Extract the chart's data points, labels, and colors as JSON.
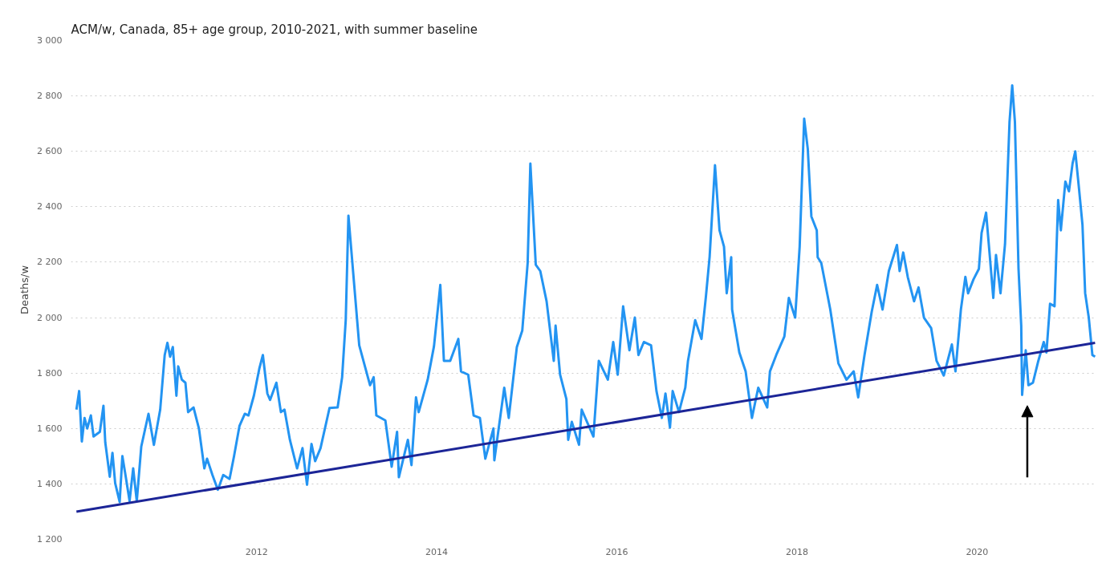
{
  "chart_data": {
    "type": "line",
    "title": "ACM/w, Canada, 85+ age group, 2010-2021, with summer baseline",
    "ylabel": "Deaths/w",
    "xlim": [
      2009.94,
      2021.32
    ],
    "ylim": [
      1200,
      3000
    ],
    "xticks": [
      2012,
      2014,
      2016,
      2018,
      2020
    ],
    "yticks": [
      {
        "value": 1200,
        "label": "1 200"
      },
      {
        "value": 1400,
        "label": "1 400"
      },
      {
        "value": 1600,
        "label": "1 600"
      },
      {
        "value": 1800,
        "label": "1 800"
      },
      {
        "value": 2000,
        "label": "2 000"
      },
      {
        "value": 2200,
        "label": "2 200"
      },
      {
        "value": 2400,
        "label": "2 400"
      },
      {
        "value": 2600,
        "label": "2 600"
      },
      {
        "value": 2800,
        "label": "2 800"
      },
      {
        "value": 3000,
        "label": "3 000"
      }
    ],
    "grid": "y",
    "line_style": "solid",
    "marker": "none",
    "series": [
      {
        "color": "#2394f2",
        "x": [
          2010.0,
          2010.03,
          2010.06,
          2010.09,
          2010.12,
          2010.16,
          2010.19,
          2010.26,
          2010.3,
          2010.32,
          2010.37,
          2010.4,
          2010.43,
          2010.48,
          2010.51,
          2010.54,
          2010.59,
          2010.63,
          2010.67,
          2010.72,
          2010.8,
          2010.86,
          2010.93,
          2010.98,
          2011.01,
          2011.04,
          2011.07,
          2011.11,
          2011.13,
          2011.17,
          2011.21,
          2011.24,
          2011.3,
          2011.36,
          2011.42,
          2011.45,
          2011.51,
          2011.57,
          2011.63,
          2011.7,
          2011.75,
          2011.81,
          2011.87,
          2011.91,
          2011.97,
          2012.03,
          2012.07,
          2012.12,
          2012.15,
          2012.22,
          2012.27,
          2012.31,
          2012.37,
          2012.45,
          2012.51,
          2012.56,
          2012.61,
          2012.65,
          2012.71,
          2012.81,
          2012.9,
          2012.95,
          2012.99,
          2013.02,
          2013.14,
          2013.26,
          2013.3,
          2013.33,
          2013.43,
          2013.5,
          2013.56,
          2013.58,
          2013.68,
          2013.72,
          2013.77,
          2013.8,
          2013.9,
          2013.97,
          2014.04,
          2014.08,
          2014.15,
          2014.24,
          2014.27,
          2014.35,
          2014.41,
          2014.48,
          2014.54,
          2014.63,
          2014.64,
          2014.75,
          2014.8,
          2014.89,
          2014.95,
          2015.01,
          2015.04,
          2015.1,
          2015.15,
          2015.22,
          2015.3,
          2015.32,
          2015.37,
          2015.44,
          2015.46,
          2015.5,
          2015.58,
          2015.61,
          2015.74,
          2015.8,
          2015.9,
          2015.96,
          2016.01,
          2016.07,
          2016.14,
          2016.2,
          2016.24,
          2016.3,
          2016.38,
          2016.44,
          2016.5,
          2016.54,
          2016.59,
          2016.62,
          2016.69,
          2016.76,
          2016.79,
          2016.87,
          2016.94,
          2016.99,
          2017.03,
          2017.09,
          2017.14,
          2017.19,
          2017.22,
          2017.27,
          2017.28,
          2017.36,
          2017.43,
          2017.5,
          2017.57,
          2017.67,
          2017.7,
          2017.77,
          2017.86,
          2017.91,
          2017.98,
          2018.03,
          2018.08,
          2018.12,
          2018.16,
          2018.22,
          2018.23,
          2018.27,
          2018.37,
          2018.46,
          2018.55,
          2018.63,
          2018.68,
          2018.75,
          2018.83,
          2018.89,
          2018.95,
          2019.02,
          2019.11,
          2019.14,
          2019.18,
          2019.23,
          2019.3,
          2019.35,
          2019.41,
          2019.49,
          2019.55,
          2019.63,
          2019.72,
          2019.76,
          2019.82,
          2019.87,
          2019.9,
          2019.96,
          2020.02,
          2020.05,
          2020.1,
          2020.14,
          2020.18,
          2020.21,
          2020.26,
          2020.31,
          2020.36,
          2020.39,
          2020.42,
          2020.46,
          2020.49,
          2020.5,
          2020.54,
          2020.57,
          2020.62,
          2020.68,
          2020.74,
          2020.77,
          2020.81,
          2020.86,
          2020.9,
          2020.93,
          2020.98,
          2021.02,
          2021.06,
          2021.09,
          2021.13,
          2021.17,
          2021.2,
          2021.24,
          2021.28,
          2021.31
        ],
        "values": [
          1668,
          1735,
          1553,
          1638,
          1600,
          1647,
          1571,
          1588,
          1682,
          1550,
          1426,
          1512,
          1403,
          1335,
          1500,
          1441,
          1338,
          1456,
          1338,
          1535,
          1653,
          1541,
          1668,
          1865,
          1909,
          1859,
          1894,
          1718,
          1824,
          1776,
          1765,
          1659,
          1676,
          1600,
          1456,
          1491,
          1432,
          1379,
          1432,
          1418,
          1500,
          1609,
          1653,
          1647,
          1718,
          1815,
          1865,
          1726,
          1703,
          1765,
          1659,
          1668,
          1559,
          1456,
          1529,
          1397,
          1544,
          1482,
          1529,
          1674,
          1676,
          1785,
          1991,
          2368,
          1900,
          1756,
          1785,
          1647,
          1629,
          1462,
          1588,
          1424,
          1559,
          1468,
          1712,
          1659,
          1776,
          1897,
          2118,
          1844,
          1844,
          1923,
          1806,
          1794,
          1647,
          1638,
          1491,
          1600,
          1485,
          1747,
          1638,
          1894,
          1953,
          2197,
          2556,
          2191,
          2168,
          2059,
          1844,
          1971,
          1794,
          1706,
          1559,
          1624,
          1541,
          1668,
          1571,
          1844,
          1776,
          1912,
          1794,
          2041,
          1882,
          2000,
          1865,
          1912,
          1900,
          1735,
          1638,
          1726,
          1603,
          1735,
          1659,
          1747,
          1844,
          1991,
          1923,
          2079,
          2218,
          2550,
          2315,
          2256,
          2088,
          2218,
          2029,
          1874,
          1806,
          1638,
          1747,
          1676,
          1806,
          1865,
          1932,
          2071,
          2000,
          2256,
          2718,
          2609,
          2365,
          2315,
          2218,
          2197,
          2029,
          1835,
          1776,
          1806,
          1712,
          1865,
          2021,
          2118,
          2029,
          2168,
          2262,
          2168,
          2235,
          2147,
          2059,
          2109,
          2000,
          1962,
          1844,
          1791,
          1903,
          1806,
          2029,
          2147,
          2088,
          2138,
          2176,
          2306,
          2379,
          2226,
          2071,
          2226,
          2088,
          2265,
          2706,
          2838,
          2706,
          2176,
          1971,
          1721,
          1882,
          1756,
          1765,
          1844,
          1912,
          1874,
          2050,
          2041,
          2424,
          2315,
          2491,
          2456,
          2556,
          2600,
          2471,
          2335,
          2088,
          2000,
          1865,
          1859
        ]
      },
      {
        "type": "line",
        "color": "#1c2597",
        "x": [
          2010.0,
          2021.31
        ],
        "values": [
          1300,
          1909
        ]
      }
    ]
  }
}
